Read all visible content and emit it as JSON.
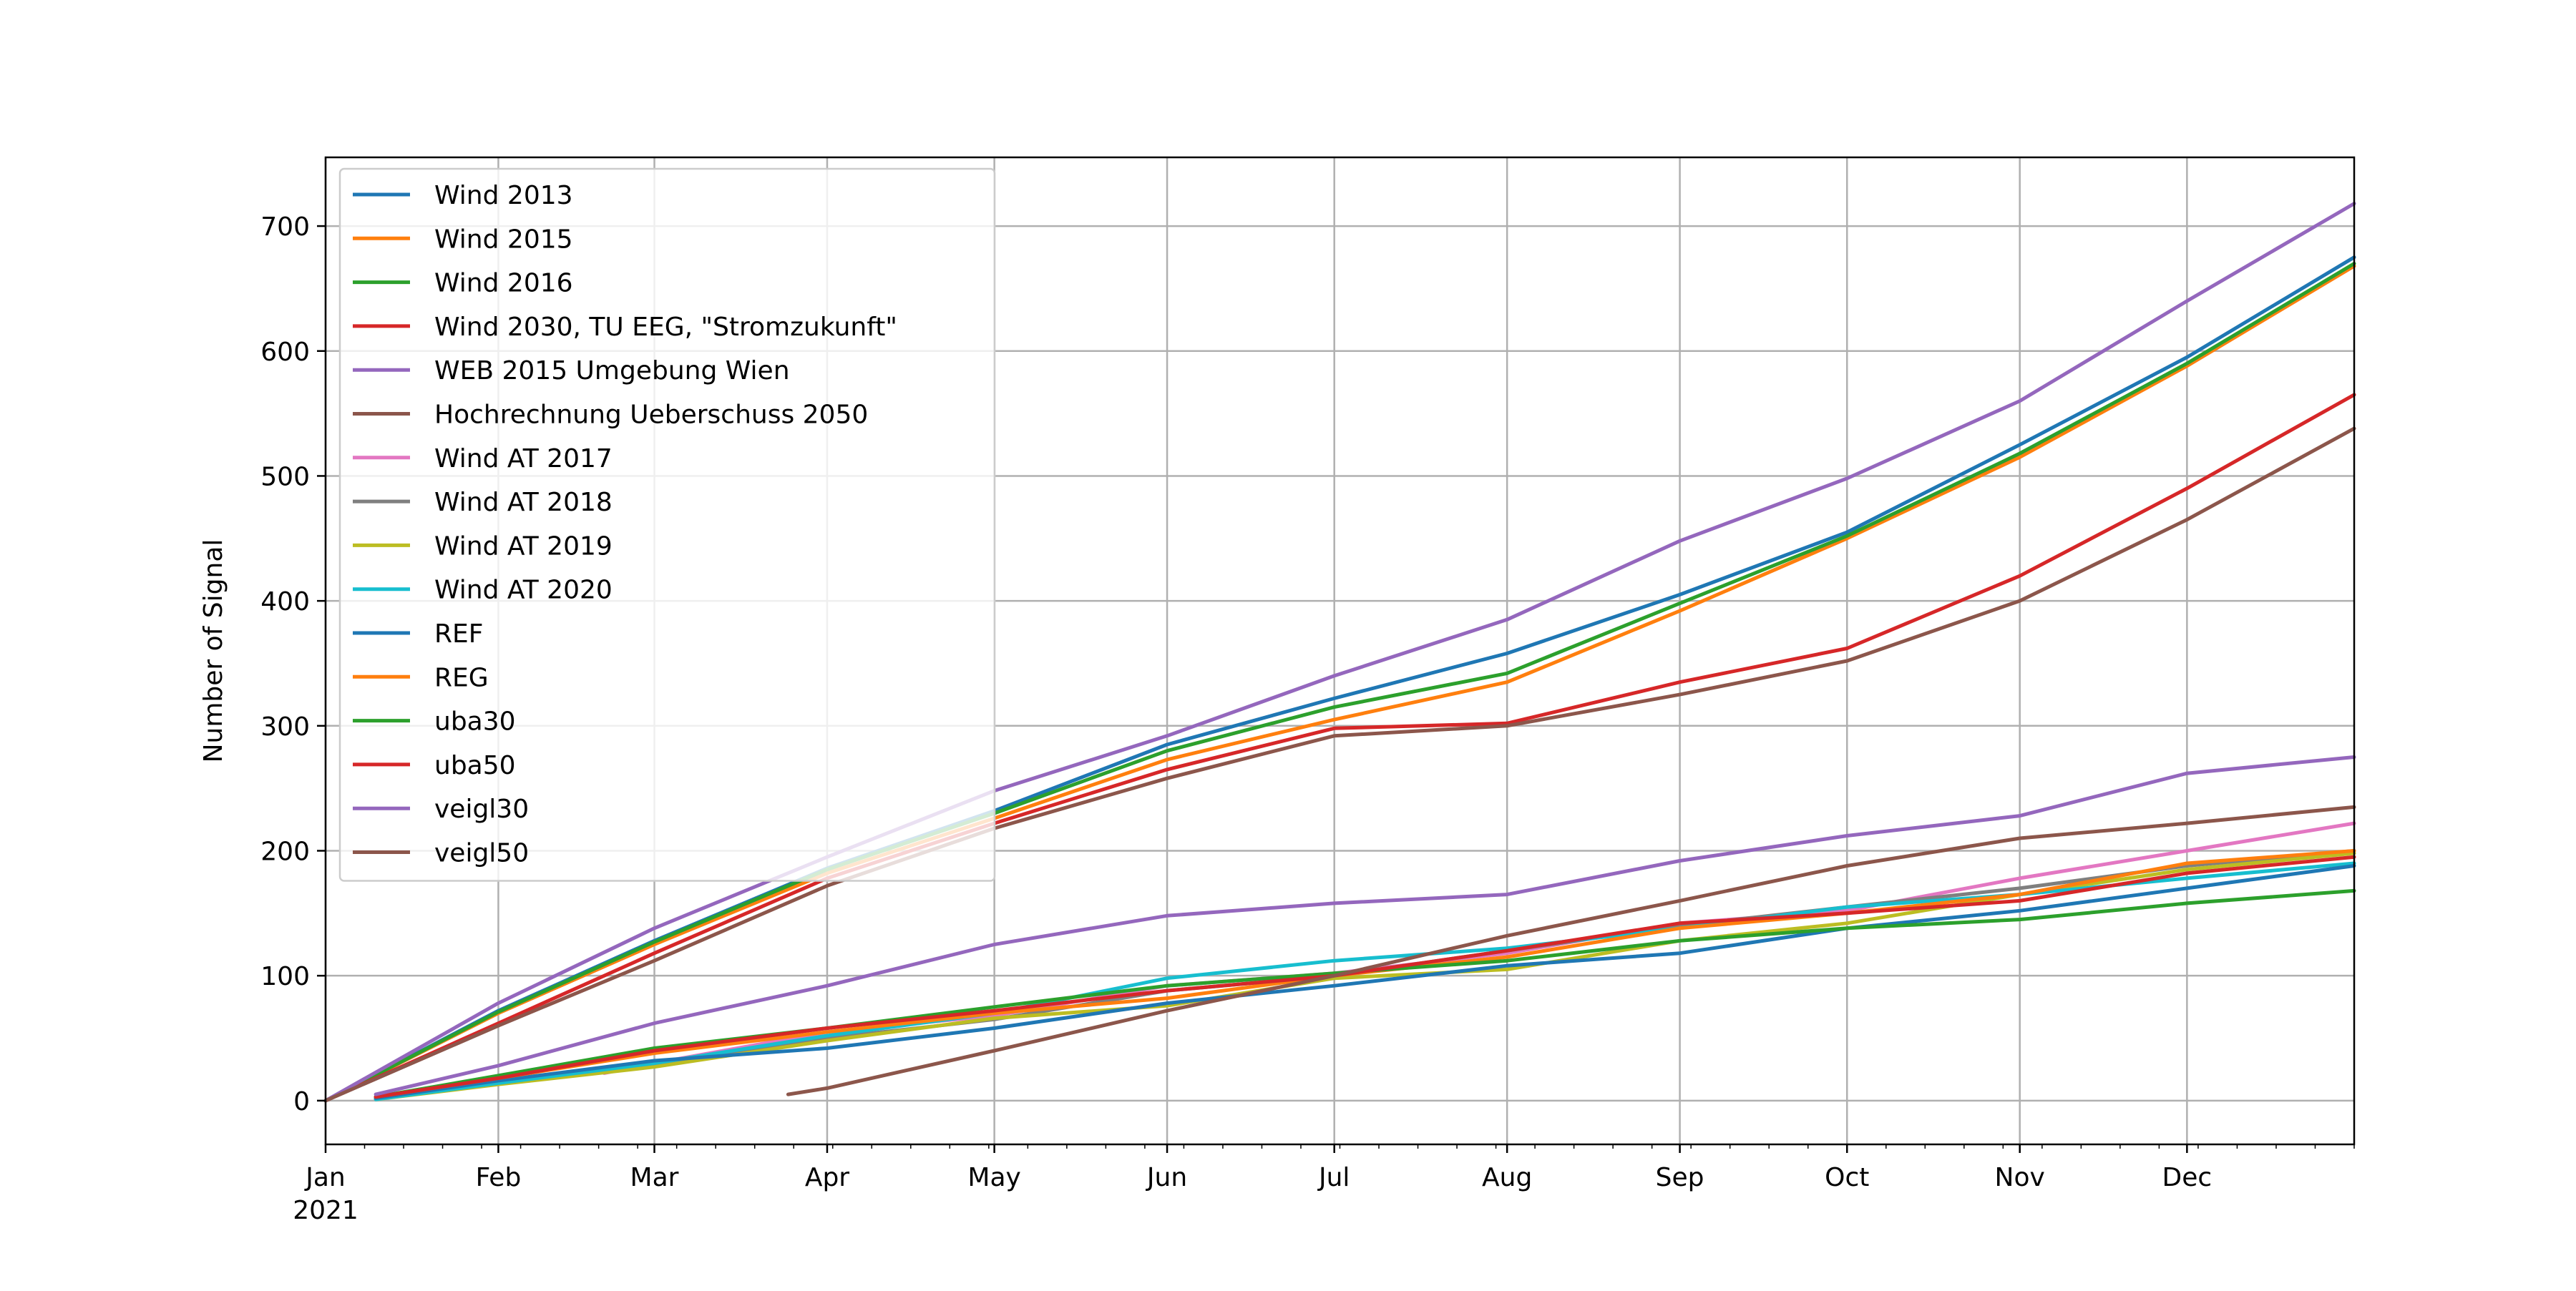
{
  "chart_data": {
    "type": "line",
    "title": "",
    "xlabel": "",
    "ylabel": "Number of Signal",
    "x_range": [
      "2021-01-01",
      "2021-12-31"
    ],
    "ylim": [
      -35,
      755
    ],
    "grid": true,
    "legend_position": "top-left",
    "x_ticks": [
      {
        "date": "2021-01-01",
        "label": "Jan",
        "sublabel": "2021"
      },
      {
        "date": "2021-02-01",
        "label": "Feb"
      },
      {
        "date": "2021-03-01",
        "label": "Mar"
      },
      {
        "date": "2021-04-01",
        "label": "Apr"
      },
      {
        "date": "2021-05-01",
        "label": "May"
      },
      {
        "date": "2021-06-01",
        "label": "Jun"
      },
      {
        "date": "2021-07-01",
        "label": "Jul"
      },
      {
        "date": "2021-08-01",
        "label": "Aug"
      },
      {
        "date": "2021-09-01",
        "label": "Sep"
      },
      {
        "date": "2021-10-01",
        "label": "Oct"
      },
      {
        "date": "2021-11-01",
        "label": "Nov"
      },
      {
        "date": "2021-12-01",
        "label": "Dec"
      }
    ],
    "y_ticks": [
      0,
      100,
      200,
      300,
      400,
      500,
      600,
      700
    ],
    "series": [
      {
        "name": "Wind 2013",
        "color": "#1f77b4",
        "points": [
          [
            "2021-01-01",
            0
          ],
          [
            "2021-02-01",
            72
          ],
          [
            "2021-03-01",
            128
          ],
          [
            "2021-04-01",
            186
          ],
          [
            "2021-05-01",
            232
          ],
          [
            "2021-06-01",
            285
          ],
          [
            "2021-07-01",
            322
          ],
          [
            "2021-08-01",
            358
          ],
          [
            "2021-09-01",
            405
          ],
          [
            "2021-10-01",
            455
          ],
          [
            "2021-11-01",
            525
          ],
          [
            "2021-12-01",
            595
          ],
          [
            "2021-12-31",
            675
          ]
        ]
      },
      {
        "name": "Wind 2015",
        "color": "#ff7f0e",
        "points": [
          [
            "2021-01-01",
            0
          ],
          [
            "2021-02-01",
            70
          ],
          [
            "2021-03-01",
            125
          ],
          [
            "2021-04-01",
            182
          ],
          [
            "2021-05-01",
            226
          ],
          [
            "2021-06-01",
            273
          ],
          [
            "2021-07-01",
            305
          ],
          [
            "2021-08-01",
            335
          ],
          [
            "2021-09-01",
            392
          ],
          [
            "2021-10-01",
            450
          ],
          [
            "2021-11-01",
            515
          ],
          [
            "2021-12-01",
            588
          ],
          [
            "2021-12-31",
            668
          ]
        ]
      },
      {
        "name": "Wind 2016",
        "color": "#2ca02c",
        "points": [
          [
            "2021-01-01",
            0
          ],
          [
            "2021-02-01",
            71
          ],
          [
            "2021-03-01",
            127
          ],
          [
            "2021-04-01",
            185
          ],
          [
            "2021-05-01",
            230
          ],
          [
            "2021-06-01",
            280
          ],
          [
            "2021-07-01",
            315
          ],
          [
            "2021-08-01",
            342
          ],
          [
            "2021-09-01",
            398
          ],
          [
            "2021-10-01",
            452
          ],
          [
            "2021-11-01",
            518
          ],
          [
            "2021-12-01",
            590
          ],
          [
            "2021-12-31",
            670
          ]
        ]
      },
      {
        "name": "Wind 2030, TU EEG, \"Stromzukunft\"",
        "color": "#d62728",
        "points": [
          [
            "2021-01-01",
            0
          ],
          [
            "2021-02-01",
            62
          ],
          [
            "2021-03-01",
            118
          ],
          [
            "2021-04-01",
            178
          ],
          [
            "2021-05-01",
            222
          ],
          [
            "2021-06-01",
            265
          ],
          [
            "2021-07-01",
            298
          ],
          [
            "2021-08-01",
            302
          ],
          [
            "2021-09-01",
            335
          ],
          [
            "2021-10-01",
            362
          ],
          [
            "2021-11-01",
            420
          ],
          [
            "2021-12-01",
            490
          ],
          [
            "2021-12-31",
            565
          ]
        ]
      },
      {
        "name": "WEB 2015 Umgebung Wien",
        "color": "#9467bd",
        "points": [
          [
            "2021-01-01",
            0
          ],
          [
            "2021-02-01",
            78
          ],
          [
            "2021-03-01",
            138
          ],
          [
            "2021-04-01",
            195
          ],
          [
            "2021-05-01",
            248
          ],
          [
            "2021-06-01",
            292
          ],
          [
            "2021-07-01",
            340
          ],
          [
            "2021-08-01",
            385
          ],
          [
            "2021-09-01",
            448
          ],
          [
            "2021-10-01",
            498
          ],
          [
            "2021-11-01",
            560
          ],
          [
            "2021-12-01",
            640
          ],
          [
            "2021-12-31",
            718
          ]
        ]
      },
      {
        "name": "Hochrechnung Ueberschuss 2050",
        "color": "#8c564b",
        "points": [
          [
            "2021-01-01",
            0
          ],
          [
            "2021-02-01",
            60
          ],
          [
            "2021-03-01",
            112
          ],
          [
            "2021-04-01",
            172
          ],
          [
            "2021-05-01",
            218
          ],
          [
            "2021-06-01",
            258
          ],
          [
            "2021-07-01",
            292
          ],
          [
            "2021-08-01",
            300
          ],
          [
            "2021-09-01",
            325
          ],
          [
            "2021-10-01",
            352
          ],
          [
            "2021-11-01",
            400
          ],
          [
            "2021-12-01",
            465
          ],
          [
            "2021-12-31",
            538
          ]
        ]
      },
      {
        "name": "Wind AT 2017",
        "color": "#e377c2",
        "points": [
          [
            "2021-02-20",
            22
          ],
          [
            "2021-03-01",
            30
          ],
          [
            "2021-04-01",
            55
          ],
          [
            "2021-05-01",
            68
          ],
          [
            "2021-06-01",
            92
          ],
          [
            "2021-07-01",
            102
          ],
          [
            "2021-08-01",
            118
          ],
          [
            "2021-09-01",
            142
          ],
          [
            "2021-10-01",
            152
          ],
          [
            "2021-11-01",
            178
          ],
          [
            "2021-12-01",
            200
          ],
          [
            "2021-12-31",
            222
          ]
        ]
      },
      {
        "name": "Wind AT 2018",
        "color": "#7f7f7f",
        "points": [
          [
            "2021-01-10",
            2
          ],
          [
            "2021-02-01",
            14
          ],
          [
            "2021-03-01",
            28
          ],
          [
            "2021-04-01",
            50
          ],
          [
            "2021-05-01",
            65
          ],
          [
            "2021-06-01",
            88
          ],
          [
            "2021-07-01",
            100
          ],
          [
            "2021-08-01",
            120
          ],
          [
            "2021-09-01",
            140
          ],
          [
            "2021-10-01",
            155
          ],
          [
            "2021-11-01",
            170
          ],
          [
            "2021-12-01",
            188
          ],
          [
            "2021-12-31",
            200
          ]
        ]
      },
      {
        "name": "Wind AT 2019",
        "color": "#bcbd22",
        "points": [
          [
            "2021-01-10",
            1
          ],
          [
            "2021-02-01",
            13
          ],
          [
            "2021-03-01",
            27
          ],
          [
            "2021-04-01",
            48
          ],
          [
            "2021-05-01",
            66
          ],
          [
            "2021-06-01",
            76
          ],
          [
            "2021-07-01",
            98
          ],
          [
            "2021-08-01",
            105
          ],
          [
            "2021-09-01",
            128
          ],
          [
            "2021-10-01",
            142
          ],
          [
            "2021-11-01",
            165
          ],
          [
            "2021-12-01",
            185
          ],
          [
            "2021-12-31",
            198
          ]
        ]
      },
      {
        "name": "Wind AT 2020",
        "color": "#17becf",
        "points": [
          [
            "2021-01-10",
            1
          ],
          [
            "2021-02-01",
            14
          ],
          [
            "2021-03-01",
            30
          ],
          [
            "2021-04-01",
            52
          ],
          [
            "2021-05-01",
            70
          ],
          [
            "2021-06-01",
            98
          ],
          [
            "2021-07-01",
            112
          ],
          [
            "2021-08-01",
            122
          ],
          [
            "2021-09-01",
            138
          ],
          [
            "2021-10-01",
            155
          ],
          [
            "2021-11-01",
            165
          ],
          [
            "2021-12-01",
            178
          ],
          [
            "2021-12-31",
            190
          ]
        ]
      },
      {
        "name": "REF",
        "color": "#1f77b4",
        "points": [
          [
            "2021-01-10",
            2
          ],
          [
            "2021-02-01",
            16
          ],
          [
            "2021-03-01",
            32
          ],
          [
            "2021-04-01",
            42
          ],
          [
            "2021-05-01",
            58
          ],
          [
            "2021-06-01",
            78
          ],
          [
            "2021-07-01",
            92
          ],
          [
            "2021-08-01",
            108
          ],
          [
            "2021-09-01",
            118
          ],
          [
            "2021-10-01",
            138
          ],
          [
            "2021-11-01",
            152
          ],
          [
            "2021-12-01",
            170
          ],
          [
            "2021-12-31",
            188
          ]
        ]
      },
      {
        "name": "REG",
        "color": "#ff7f0e",
        "points": [
          [
            "2021-01-10",
            3
          ],
          [
            "2021-02-01",
            18
          ],
          [
            "2021-03-01",
            38
          ],
          [
            "2021-04-01",
            55
          ],
          [
            "2021-05-01",
            70
          ],
          [
            "2021-06-01",
            82
          ],
          [
            "2021-07-01",
            100
          ],
          [
            "2021-08-01",
            115
          ],
          [
            "2021-09-01",
            138
          ],
          [
            "2021-10-01",
            150
          ],
          [
            "2021-11-01",
            165
          ],
          [
            "2021-12-01",
            190
          ],
          [
            "2021-12-31",
            200
          ]
        ]
      },
      {
        "name": "uba30",
        "color": "#2ca02c",
        "points": [
          [
            "2021-01-10",
            3
          ],
          [
            "2021-02-01",
            20
          ],
          [
            "2021-03-01",
            42
          ],
          [
            "2021-04-01",
            58
          ],
          [
            "2021-05-01",
            75
          ],
          [
            "2021-06-01",
            92
          ],
          [
            "2021-07-01",
            102
          ],
          [
            "2021-08-01",
            112
          ],
          [
            "2021-09-01",
            128
          ],
          [
            "2021-10-01",
            138
          ],
          [
            "2021-11-01",
            145
          ],
          [
            "2021-12-01",
            158
          ],
          [
            "2021-12-31",
            168
          ]
        ]
      },
      {
        "name": "uba50",
        "color": "#d62728",
        "points": [
          [
            "2021-01-10",
            3
          ],
          [
            "2021-02-01",
            18
          ],
          [
            "2021-03-01",
            40
          ],
          [
            "2021-04-01",
            58
          ],
          [
            "2021-05-01",
            72
          ],
          [
            "2021-06-01",
            88
          ],
          [
            "2021-07-01",
            100
          ],
          [
            "2021-08-01",
            120
          ],
          [
            "2021-09-01",
            142
          ],
          [
            "2021-10-01",
            150
          ],
          [
            "2021-11-01",
            160
          ],
          [
            "2021-12-01",
            182
          ],
          [
            "2021-12-31",
            195
          ]
        ]
      },
      {
        "name": "veigl30",
        "color": "#9467bd",
        "points": [
          [
            "2021-01-10",
            5
          ],
          [
            "2021-02-01",
            28
          ],
          [
            "2021-03-01",
            62
          ],
          [
            "2021-04-01",
            92
          ],
          [
            "2021-05-01",
            125
          ],
          [
            "2021-06-01",
            148
          ],
          [
            "2021-07-01",
            158
          ],
          [
            "2021-08-01",
            165
          ],
          [
            "2021-09-01",
            192
          ],
          [
            "2021-10-01",
            212
          ],
          [
            "2021-11-01",
            228
          ],
          [
            "2021-12-01",
            262
          ],
          [
            "2021-12-31",
            275
          ]
        ]
      },
      {
        "name": "veigl50",
        "color": "#8c564b",
        "points": [
          [
            "2021-03-25",
            5
          ],
          [
            "2021-04-01",
            10
          ],
          [
            "2021-05-01",
            40
          ],
          [
            "2021-06-01",
            72
          ],
          [
            "2021-07-01",
            100
          ],
          [
            "2021-08-01",
            132
          ],
          [
            "2021-09-01",
            160
          ],
          [
            "2021-10-01",
            188
          ],
          [
            "2021-11-01",
            210
          ],
          [
            "2021-12-01",
            222
          ],
          [
            "2021-12-31",
            235
          ]
        ]
      }
    ]
  }
}
